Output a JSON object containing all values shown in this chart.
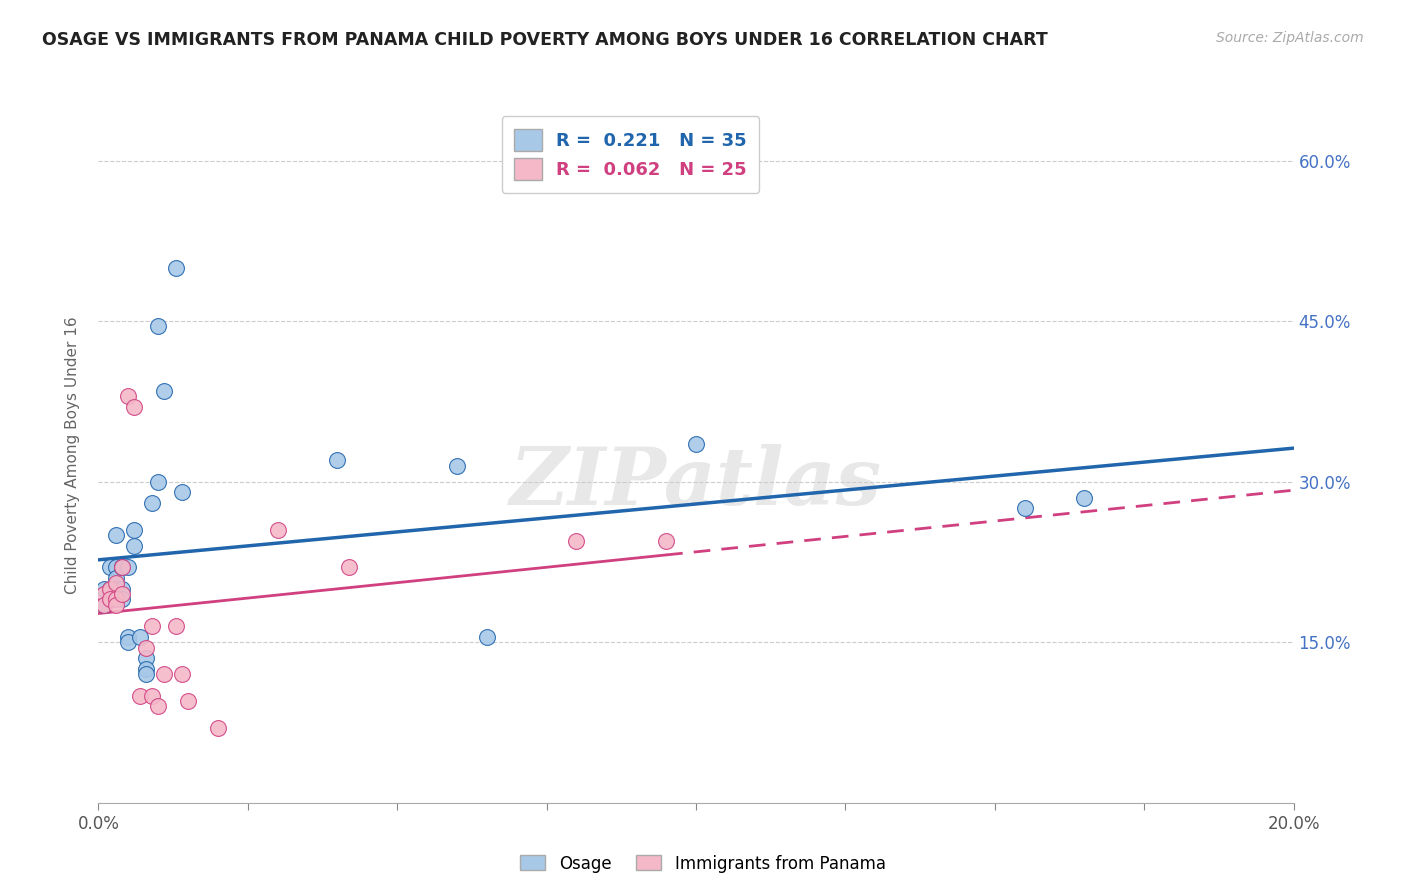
{
  "title": "OSAGE VS IMMIGRANTS FROM PANAMA CHILD POVERTY AMONG BOYS UNDER 16 CORRELATION CHART",
  "source": "Source: ZipAtlas.com",
  "ylabel": "Child Poverty Among Boys Under 16",
  "xlim": [
    0.0,
    0.2
  ],
  "ylim": [
    0.0,
    0.65
  ],
  "ytick_positions": [
    0.0,
    0.15,
    0.3,
    0.45,
    0.6
  ],
  "xtick_positions": [
    0.0,
    0.025,
    0.05,
    0.075,
    0.1,
    0.125,
    0.15,
    0.175,
    0.2
  ],
  "legend_label1": "Osage",
  "legend_label2": "Immigrants from Panama",
  "R1": 0.221,
  "N1": 35,
  "R2": 0.062,
  "N2": 25,
  "color_blue": "#a8c8e8",
  "color_pink": "#f4b8c8",
  "color_blue_line": "#2166ac",
  "color_pink_line": "#d04080",
  "background_color": "#ffffff",
  "grid_color": "#cccccc",
  "title_color": "#222222",
  "watermark_text": "ZIPatlas",
  "osage_x": [
    0.001,
    0.001,
    0.002,
    0.002,
    0.002,
    0.003,
    0.003,
    0.003,
    0.003,
    0.003,
    0.004,
    0.004,
    0.004,
    0.004,
    0.005,
    0.005,
    0.005,
    0.006,
    0.006,
    0.007,
    0.008,
    0.008,
    0.008,
    0.009,
    0.01,
    0.01,
    0.011,
    0.013,
    0.014,
    0.04,
    0.06,
    0.065,
    0.1,
    0.155,
    0.165
  ],
  "osage_y": [
    0.2,
    0.185,
    0.22,
    0.2,
    0.19,
    0.25,
    0.22,
    0.21,
    0.2,
    0.19,
    0.22,
    0.22,
    0.2,
    0.19,
    0.22,
    0.155,
    0.15,
    0.255,
    0.24,
    0.155,
    0.135,
    0.125,
    0.12,
    0.28,
    0.3,
    0.445,
    0.385,
    0.5,
    0.29,
    0.32,
    0.315,
    0.155,
    0.335,
    0.275,
    0.285
  ],
  "panama_x": [
    0.001,
    0.001,
    0.002,
    0.002,
    0.003,
    0.003,
    0.003,
    0.004,
    0.004,
    0.005,
    0.006,
    0.007,
    0.008,
    0.009,
    0.009,
    0.01,
    0.011,
    0.013,
    0.014,
    0.015,
    0.02,
    0.03,
    0.042,
    0.08,
    0.095
  ],
  "panama_y": [
    0.195,
    0.185,
    0.2,
    0.19,
    0.205,
    0.19,
    0.185,
    0.22,
    0.195,
    0.38,
    0.37,
    0.1,
    0.145,
    0.1,
    0.165,
    0.09,
    0.12,
    0.165,
    0.12,
    0.095,
    0.07,
    0.255,
    0.22,
    0.245,
    0.245
  ]
}
